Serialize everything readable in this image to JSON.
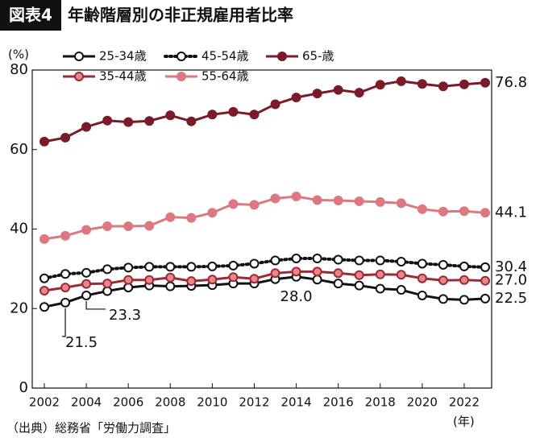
{
  "chart_data": {
    "type": "line",
    "title_tag": "図表4",
    "title": "年齢階層別の非正規雇用者比率",
    "y_label": "(%)",
    "x_label": "(年)",
    "source": "（出典）総務省「労働力調査」",
    "x": [
      2002,
      2003,
      2004,
      2005,
      2006,
      2007,
      2008,
      2009,
      2010,
      2011,
      2012,
      2013,
      2014,
      2015,
      2016,
      2017,
      2018,
      2019,
      2020,
      2021,
      2022,
      2023
    ],
    "xlim": [
      2002,
      2023
    ],
    "xticks": [
      2002,
      2004,
      2006,
      2008,
      2010,
      2012,
      2014,
      2016,
      2018,
      2020,
      2022
    ],
    "ylim": [
      0,
      80
    ],
    "yticks": [
      0,
      20,
      40,
      60,
      80
    ],
    "series": [
      {
        "name": "25-34歳",
        "color": "#111111",
        "marker_fill": "#ffffff",
        "line_style": "solid",
        "values": [
          20.4,
          21.5,
          23.3,
          24.4,
          25.3,
          25.8,
          25.6,
          25.7,
          25.9,
          26.3,
          26.3,
          27.4,
          28.0,
          27.3,
          26.3,
          25.8,
          25.0,
          24.7,
          23.3,
          22.4,
          22.2,
          22.5
        ],
        "value_labels": [
          null,
          "21.5",
          "23.3",
          null,
          null,
          null,
          null,
          null,
          null,
          null,
          null,
          null,
          "28.0",
          null,
          null,
          null,
          null,
          null,
          null,
          null,
          null,
          "22.5"
        ]
      },
      {
        "name": "45-54歳",
        "color": "#111111",
        "marker_fill": "#ffffff",
        "line_style": "dotted",
        "values": [
          27.6,
          28.7,
          29.0,
          29.9,
          30.3,
          30.5,
          30.5,
          30.5,
          30.6,
          30.8,
          31.3,
          32.1,
          32.6,
          32.6,
          32.3,
          32.1,
          32.1,
          31.8,
          31.3,
          31.0,
          30.6,
          30.4
        ],
        "value_labels": [
          null,
          null,
          null,
          null,
          null,
          null,
          null,
          null,
          null,
          null,
          null,
          null,
          null,
          null,
          null,
          null,
          null,
          null,
          null,
          null,
          null,
          "30.4"
        ]
      },
      {
        "name": "65-歳",
        "color": "#7a1b2a",
        "marker_fill": "#7a1b2a",
        "line_style": "solid",
        "values": [
          62.0,
          63.0,
          65.7,
          67.3,
          66.9,
          67.2,
          68.6,
          67.1,
          68.8,
          69.5,
          68.8,
          71.4,
          73.1,
          74.1,
          75.0,
          74.3,
          76.3,
          77.2,
          76.5,
          75.9,
          76.4,
          76.8
        ],
        "value_labels": [
          null,
          null,
          null,
          null,
          null,
          null,
          null,
          null,
          null,
          null,
          null,
          null,
          null,
          null,
          null,
          null,
          null,
          null,
          null,
          null,
          null,
          "76.8"
        ]
      },
      {
        "name": "35-44歳",
        "color": "#9b2a36",
        "marker_fill": "#e8868a",
        "line_style": "solid",
        "values": [
          24.5,
          25.3,
          26.2,
          26.3,
          27.2,
          27.2,
          27.8,
          26.9,
          27.3,
          27.9,
          27.5,
          28.9,
          29.3,
          29.3,
          28.9,
          28.4,
          28.6,
          28.5,
          27.6,
          27.1,
          27.2,
          27.0
        ],
        "value_labels": [
          null,
          null,
          null,
          null,
          null,
          null,
          null,
          null,
          null,
          null,
          null,
          null,
          null,
          null,
          null,
          null,
          null,
          null,
          null,
          null,
          null,
          "27.0"
        ]
      },
      {
        "name": "55-64歳",
        "color": "#dd7880",
        "marker_fill": "#dd7880",
        "line_style": "solid",
        "values": [
          37.5,
          38.3,
          39.8,
          40.7,
          40.7,
          40.8,
          43.0,
          42.8,
          44.1,
          46.3,
          46.1,
          47.7,
          48.2,
          47.3,
          47.2,
          47.0,
          46.8,
          46.5,
          45.0,
          44.4,
          44.5,
          44.1
        ],
        "value_labels": [
          null,
          null,
          null,
          null,
          null,
          null,
          null,
          null,
          null,
          null,
          null,
          null,
          null,
          null,
          null,
          null,
          null,
          null,
          null,
          null,
          null,
          "44.1"
        ]
      }
    ]
  }
}
